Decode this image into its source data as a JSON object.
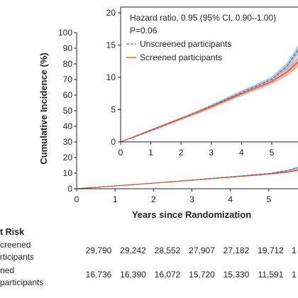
{
  "chart_data": [
    {
      "type": "line",
      "xlabel": "Years since Randomization",
      "ylabel": "Cumulative Incidence (%)",
      "xlim": [
        0,
        5.76
      ],
      "ylim": [
        0,
        100
      ],
      "xticks": [
        0,
        1,
        2,
        3,
        4,
        5
      ],
      "yticks": [
        0,
        10,
        20,
        30,
        40,
        50,
        60,
        70,
        80,
        90,
        100
      ],
      "grid": false,
      "x": [
        0,
        0.5,
        1,
        1.5,
        2,
        2.5,
        3,
        3.5,
        4,
        4.5,
        5,
        5.5,
        5.9
      ],
      "series": [
        {
          "values": [
            0,
            0.85,
            1.75,
            2.65,
            3.6,
            4.55,
            5.55,
            6.6,
            7.65,
            8.65,
            9.7,
            11.7,
            14.4
          ],
          "ci_halfwidth": [
            0,
            0.1,
            0.15,
            0.18,
            0.2,
            0.23,
            0.26,
            0.29,
            0.32,
            0.36,
            0.42,
            0.55,
            0.8
          ],
          "color": "#4b72b6",
          "band_color": "#a9bee3",
          "dashed": true
        },
        {
          "values": [
            0,
            0.9,
            1.8,
            2.7,
            3.6,
            4.5,
            5.45,
            6.45,
            7.45,
            8.4,
            9.35,
            10.8,
            12.5
          ],
          "ci_halfwidth": [
            0,
            0.12,
            0.17,
            0.2,
            0.22,
            0.25,
            0.28,
            0.31,
            0.34,
            0.38,
            0.44,
            0.58,
            0.85
          ],
          "color": "#c9533c",
          "band_color": "#eba793",
          "dashed": false
        }
      ]
    },
    {
      "type": "line",
      "inset": true,
      "annotations": [
        "Hazard ratio, 0.95 (95% CI, 0.90–1.00)",
        "P=0.06"
      ],
      "legend_position": "top-left",
      "xlim": [
        0,
        5.87
      ],
      "ylim": [
        0,
        20
      ],
      "xticks": [
        0,
        1,
        2,
        3,
        4,
        5
      ],
      "yticks": [
        0,
        5,
        10,
        15,
        20
      ],
      "grid": false,
      "x": [
        0,
        0.5,
        1,
        1.5,
        2,
        2.5,
        3,
        3.5,
        4,
        4.5,
        5,
        5.5,
        5.9
      ],
      "series": [
        {
          "name": "Unscreened participants",
          "values": [
            0,
            0.85,
            1.75,
            2.65,
            3.6,
            4.55,
            5.55,
            6.6,
            7.65,
            8.65,
            9.7,
            11.7,
            14.4
          ],
          "ci_halfwidth": [
            0,
            0.1,
            0.15,
            0.18,
            0.2,
            0.23,
            0.26,
            0.29,
            0.32,
            0.36,
            0.42,
            0.55,
            0.8
          ],
          "color": "#4b72b6",
          "band_color": "#a9bee3",
          "dashed": true
        },
        {
          "name": "Screened participants",
          "values": [
            0,
            0.9,
            1.8,
            2.7,
            3.6,
            4.5,
            5.45,
            6.45,
            7.45,
            8.4,
            9.35,
            10.8,
            12.5
          ],
          "ci_halfwidth": [
            0,
            0.12,
            0.17,
            0.2,
            0.22,
            0.25,
            0.28,
            0.31,
            0.34,
            0.38,
            0.44,
            0.58,
            0.85
          ],
          "color": "#c9533c",
          "band_color": "#eba793",
          "dashed": false
        }
      ]
    }
  ],
  "at_risk": {
    "heading": "t Risk",
    "rows": [
      {
        "label_lines": [
          "creened",
          "rticipants"
        ],
        "values": [
          "29,790",
          "29,242",
          "28,552",
          "27,907",
          "27,182",
          "19,712",
          "1"
        ]
      },
      {
        "label_lines": [
          "ned",
          "participants"
        ],
        "values": [
          "16,736",
          "16,390",
          "16,072",
          "15,720",
          "15,330",
          "11,591",
          "1"
        ]
      }
    ]
  }
}
